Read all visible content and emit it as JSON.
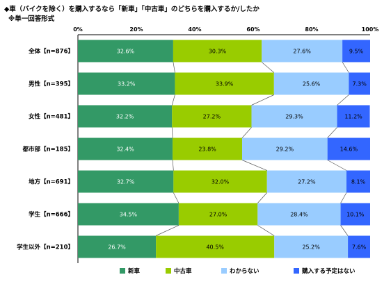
{
  "title": "◆車（バイクを除く）を購入するなら「新車」「中古車」のどちらを購入するか/したか",
  "subtitle": "※単一回答形式",
  "chart_data": {
    "type": "bar",
    "orientation": "horizontal",
    "stacked": true,
    "percent_stacked": true,
    "xlim": [
      0,
      100
    ],
    "x_ticks": [
      "0%",
      "20%",
      "40%",
      "60%",
      "80%",
      "100%"
    ],
    "categories": [
      "全体【n=876】",
      "男性【n=395】",
      "女性【n=481】",
      "都市部【n=185】",
      "地方【n=691】",
      "学生【n=666】",
      "学生以外【n=210】"
    ],
    "series": [
      {
        "name": "新車",
        "color": "#339966",
        "values": [
          32.6,
          33.2,
          32.2,
          32.4,
          32.7,
          34.5,
          26.7
        ],
        "labels": [
          "32.6%",
          "33.2%",
          "32.2%",
          "32.4%",
          "32.7%",
          "34.5%",
          "26.7%"
        ]
      },
      {
        "name": "中古車",
        "color": "#99CC00",
        "values": [
          30.3,
          33.9,
          27.2,
          23.8,
          32.0,
          27.0,
          40.5
        ],
        "labels": [
          "30.3%",
          "33.9%",
          "27.2%",
          "23.8%",
          "32.0%",
          "27.0%",
          "40.5%"
        ]
      },
      {
        "name": "わからない",
        "color": "#99CCFF",
        "values": [
          27.6,
          25.6,
          29.3,
          29.2,
          27.2,
          28.4,
          25.2
        ],
        "labels": [
          "27.6%",
          "25.6%",
          "29.3%",
          "29.2%",
          "27.2%",
          "28.4%",
          "25.2%"
        ]
      },
      {
        "name": "購入する予定はない",
        "color": "#3366FF",
        "values": [
          9.5,
          7.3,
          11.2,
          14.6,
          8.1,
          10.1,
          7.6
        ],
        "labels": [
          "9.5%",
          "7.3%",
          "11.2%",
          "14.6%",
          "8.1%",
          "10.1%",
          "7.6%"
        ]
      }
    ],
    "legend_position": "bottom",
    "grid": false,
    "series_connector_lines": true
  }
}
